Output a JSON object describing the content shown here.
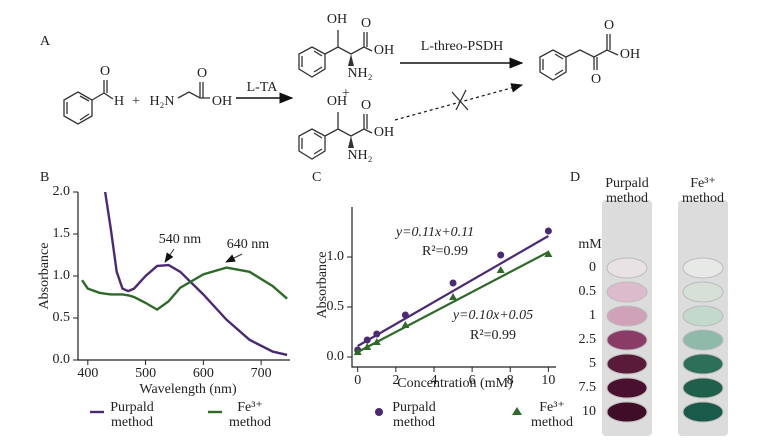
{
  "panel_a": {
    "label": "A",
    "benzaldehyde_o": "O",
    "benzaldehyde_h": "H",
    "plus_1": "+",
    "glycine_n": "H₂N",
    "glycine_o": "O",
    "glycine_oh": "OH",
    "enzyme_ta": "L-TA",
    "product_1_oh": "OH",
    "product_1_o": "O",
    "product_1_acid_oh": "OH",
    "product_1_nh2": "NH₂",
    "plus_2": "+",
    "product_2_oh": "OH",
    "product_2_o": "O",
    "product_2_acid_oh": "OH",
    "product_2_nh2": "NH₂",
    "enzyme_psdh": "L-threo-PSDH",
    "final_o_top": "O",
    "final_oh": "OH",
    "final_o_bottom": "O"
  },
  "chart_data": [
    {
      "type": "line",
      "panel_label": "B",
      "y_label": "Absorbance",
      "x_label": "Wavelength (nm)",
      "x": [
        390,
        400,
        420,
        430,
        440,
        450,
        460,
        470,
        480,
        500,
        520,
        540,
        560,
        600,
        640,
        680,
        720,
        745
      ],
      "series": [
        {
          "name": "Purpald method",
          "color": "#4b2a75",
          "values": [
            null,
            null,
            null,
            2.0,
            1.55,
            1.05,
            0.85,
            0.82,
            0.85,
            1.0,
            1.12,
            1.13,
            1.05,
            0.78,
            0.48,
            0.24,
            0.1,
            0.06
          ]
        },
        {
          "name": "Fe³⁺ method",
          "color": "#2f6a2a",
          "values": [
            0.95,
            0.85,
            0.8,
            0.79,
            0.78,
            0.78,
            0.78,
            0.77,
            0.75,
            0.68,
            0.6,
            0.7,
            0.86,
            1.02,
            1.1,
            1.05,
            0.88,
            0.73
          ]
        }
      ],
      "annotations": [
        "540 nm",
        "640 nm"
      ],
      "xlim": [
        383,
        750
      ],
      "xticks": [
        400,
        500,
        600,
        700
      ],
      "ylim": [
        0,
        2
      ],
      "yticks": [
        {
          "value": 0,
          "label": "0.0"
        },
        {
          "value": 0.5,
          "label": "0.5"
        },
        {
          "value": 1,
          "label": "1.0"
        },
        {
          "value": 1.5,
          "label": "1.5"
        },
        {
          "value": 2,
          "label": "2.0"
        }
      ]
    },
    {
      "type": "scatter",
      "panel_label": "C",
      "y_label": "Absorbance",
      "x_label": "Concentration (mM)",
      "x": [
        0,
        0.5,
        1,
        2.5,
        5,
        7.5,
        10
      ],
      "series": [
        {
          "name": "Purpald method",
          "color": "#4b2a75",
          "marker": "circle",
          "values": [
            0.07,
            0.17,
            0.23,
            0.42,
            0.74,
            1.02,
            1.26
          ],
          "fit": {
            "slope": 0.11,
            "intercept": 0.11,
            "equation": "y=0.11x+0.11",
            "r2": "R²=0.99"
          }
        },
        {
          "name": "Fe³⁺ method",
          "color": "#2f6a2a",
          "marker": "triangle",
          "values": [
            0.05,
            0.1,
            0.15,
            0.32,
            0.6,
            0.87,
            1.03
          ],
          "fit": {
            "slope": 0.1,
            "intercept": 0.05,
            "equation": "y=0.10x+0.05",
            "r2": "R²=0.99"
          }
        }
      ],
      "xlim": [
        -0.3,
        10.4
      ],
      "xticks": [
        0,
        2,
        4,
        6,
        8,
        10
      ],
      "ylim": [
        -0.1,
        1.5
      ],
      "yticks": [
        {
          "value": 0,
          "label": "0.0"
        },
        {
          "value": 0.5,
          "label": "0.5"
        },
        {
          "value": 1,
          "label": "1.0"
        }
      ]
    }
  ],
  "panel_d": {
    "label": "D",
    "column_1": "Purpald method",
    "column_2": "Fe³⁺ method",
    "unit": "mM",
    "rows": [
      {
        "concentration": 0,
        "color_1": "#e8e2e5",
        "color_2": "#e6e9e6"
      },
      {
        "concentration": 0.5,
        "color_1": "#dcbccb",
        "color_2": "#d6e0d9"
      },
      {
        "concentration": 1,
        "color_1": "#cfa2ba",
        "color_2": "#c4d9cd"
      },
      {
        "concentration": 2.5,
        "color_1": "#8a3b66",
        "color_2": "#8fb9a8"
      },
      {
        "concentration": 5,
        "color_1": "#5a1a3a",
        "color_2": "#2e6f5a"
      },
      {
        "concentration": 7.5,
        "color_1": "#4a1030",
        "color_2": "#205f4b"
      },
      {
        "concentration": 10,
        "color_1": "#3f0d28",
        "color_2": "#1a5a48"
      }
    ]
  }
}
